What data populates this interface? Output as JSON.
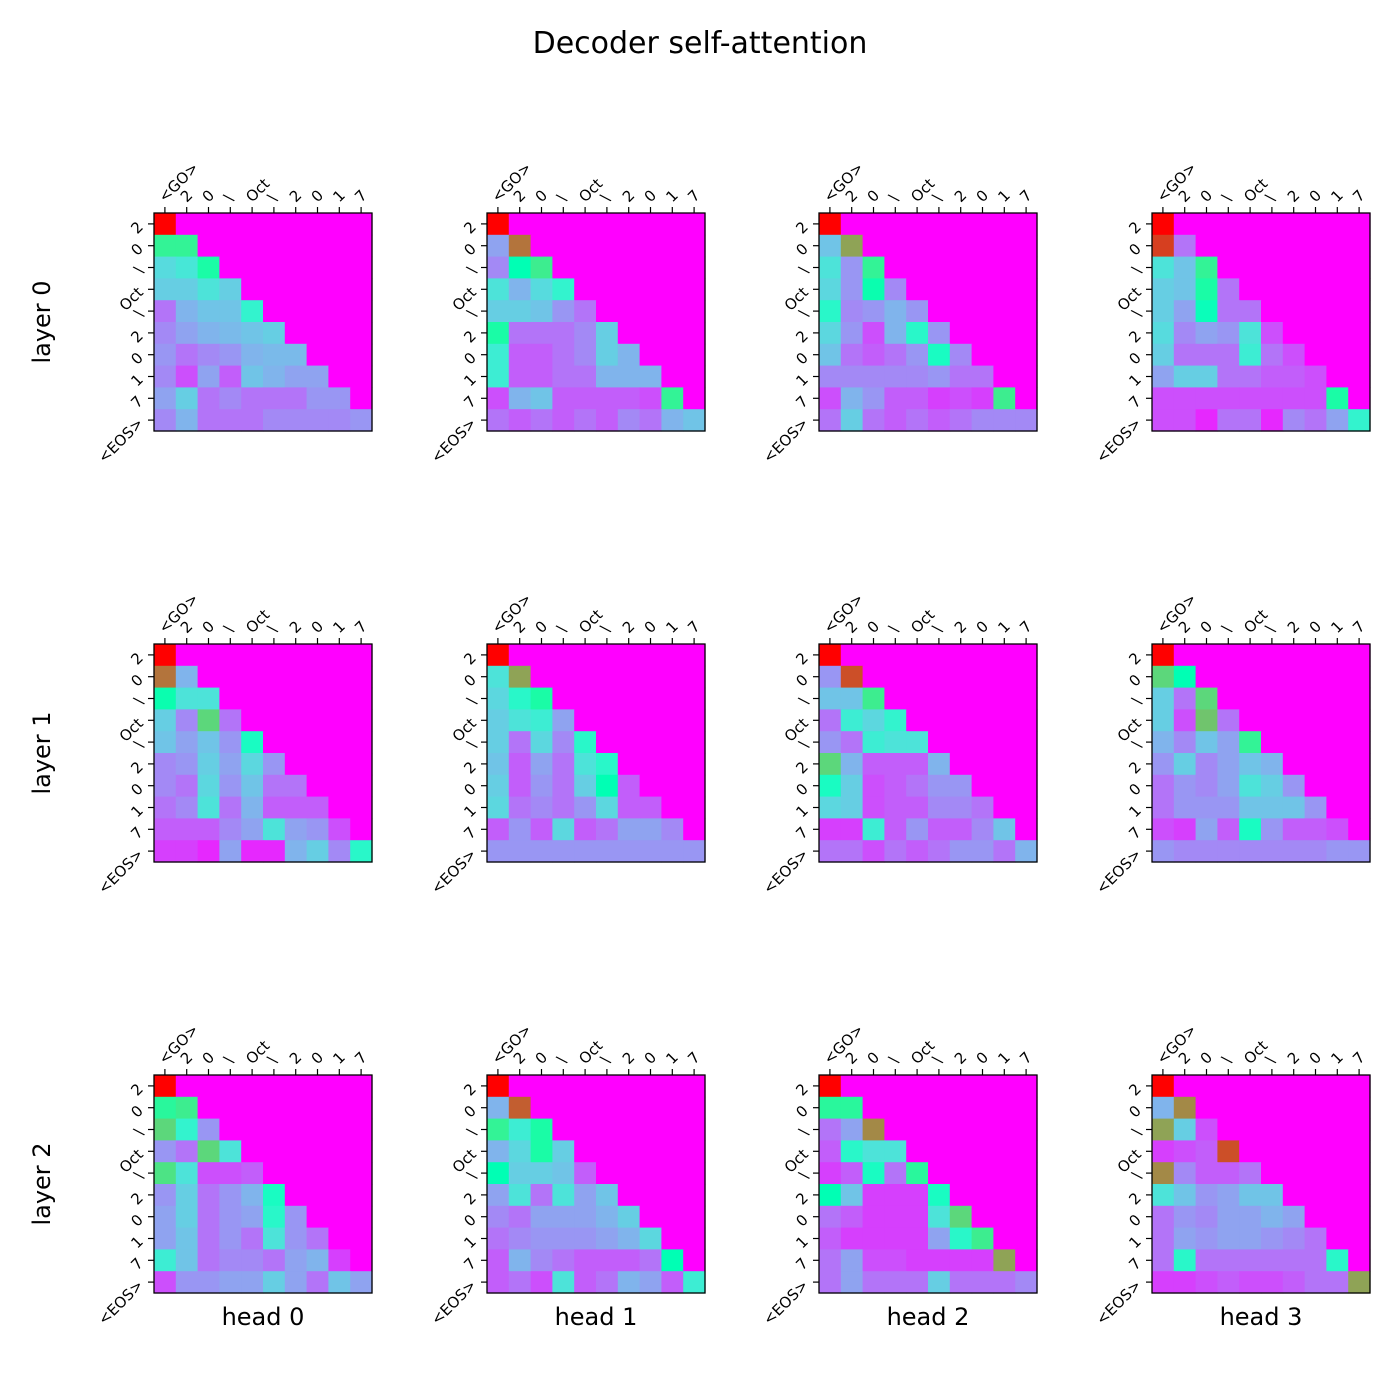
{
  "figure": {
    "title": "Decoder self-attention",
    "row_labels": [
      "layer 0",
      "layer 1",
      "layer 2"
    ],
    "col_labels": [
      "head 0",
      "head 1",
      "head 2",
      "head 3"
    ]
  },
  "chart_data": {
    "type": "heatmap",
    "title": "Decoder self-attention",
    "colormap": "rainbow",
    "value_range": [
      0,
      1
    ],
    "x_tick_labels": [
      "<GO>",
      "2",
      "0",
      "\\",
      "Oct",
      "\\",
      "2",
      "0",
      "1",
      "7"
    ],
    "y_tick_labels": [
      "2",
      "0",
      "\\",
      "Oct",
      "\\",
      "2",
      "0",
      "1",
      "7",
      "<EOS>"
    ],
    "grid": false,
    "panels": [
      {
        "layer": "layer 0",
        "head": "",
        "values": [
          [
            1.0
          ],
          [
            0.6,
            0.6
          ],
          [
            0.33,
            0.36,
            0.55
          ],
          [
            0.3,
            0.3,
            0.35,
            0.3
          ],
          [
            0.15,
            0.25,
            0.28,
            0.28,
            0.4
          ],
          [
            0.18,
            0.22,
            0.25,
            0.26,
            0.28,
            0.3
          ],
          [
            0.2,
            0.15,
            0.18,
            0.2,
            0.25,
            0.26,
            0.26
          ],
          [
            0.18,
            0.1,
            0.22,
            0.12,
            0.28,
            0.25,
            0.22,
            0.22
          ],
          [
            0.22,
            0.3,
            0.15,
            0.18,
            0.15,
            0.15,
            0.15,
            0.2,
            0.2
          ],
          [
            0.18,
            0.25,
            0.15,
            0.15,
            0.15,
            0.18,
            0.18,
            0.18,
            0.18,
            0.2
          ]
        ]
      },
      {
        "layer": "layer 0",
        "head": "",
        "values": [
          [
            1.0
          ],
          [
            0.22,
            0.85
          ],
          [
            0.18,
            0.5,
            0.62
          ],
          [
            0.35,
            0.25,
            0.33,
            0.4
          ],
          [
            0.3,
            0.3,
            0.28,
            0.2,
            0.15
          ],
          [
            0.55,
            0.15,
            0.15,
            0.15,
            0.18,
            0.3
          ],
          [
            0.38,
            0.12,
            0.12,
            0.15,
            0.18,
            0.3,
            0.25
          ],
          [
            0.38,
            0.12,
            0.12,
            0.15,
            0.15,
            0.25,
            0.25,
            0.25
          ],
          [
            0.1,
            0.25,
            0.28,
            0.12,
            0.12,
            0.12,
            0.12,
            0.1,
            0.6
          ],
          [
            0.15,
            0.12,
            0.15,
            0.12,
            0.15,
            0.12,
            0.18,
            0.15,
            0.25,
            0.28
          ]
        ]
      },
      {
        "layer": "layer 0",
        "head": "",
        "values": [
          [
            1.0
          ],
          [
            0.28,
            0.78
          ],
          [
            0.35,
            0.2,
            0.6
          ],
          [
            0.32,
            0.2,
            0.52,
            0.18
          ],
          [
            0.42,
            0.18,
            0.2,
            0.25,
            0.2
          ],
          [
            0.32,
            0.2,
            0.1,
            0.25,
            0.42,
            0.2
          ],
          [
            0.28,
            0.15,
            0.12,
            0.15,
            0.2,
            0.45,
            0.18
          ],
          [
            0.18,
            0.18,
            0.18,
            0.18,
            0.18,
            0.2,
            0.15,
            0.15
          ],
          [
            0.1,
            0.25,
            0.2,
            0.12,
            0.12,
            0.08,
            0.1,
            0.08,
            0.62
          ],
          [
            0.15,
            0.3,
            0.15,
            0.12,
            0.15,
            0.12,
            0.15,
            0.18,
            0.18,
            0.18
          ]
        ]
      },
      {
        "layer": "layer 0",
        "head": "",
        "values": [
          [
            1.0
          ],
          [
            0.92,
            0.15
          ],
          [
            0.35,
            0.28,
            0.6
          ],
          [
            0.3,
            0.28,
            0.55,
            0.15
          ],
          [
            0.3,
            0.22,
            0.48,
            0.15,
            0.15
          ],
          [
            0.33,
            0.18,
            0.22,
            0.2,
            0.35,
            0.1
          ],
          [
            0.3,
            0.15,
            0.15,
            0.15,
            0.38,
            0.15,
            0.1
          ],
          [
            0.22,
            0.3,
            0.3,
            0.15,
            0.15,
            0.12,
            0.12,
            0.1
          ],
          [
            0.1,
            0.1,
            0.1,
            0.1,
            0.1,
            0.1,
            0.1,
            0.1,
            0.55
          ],
          [
            0.1,
            0.1,
            0.05,
            0.15,
            0.15,
            0.05,
            0.18,
            0.15,
            0.22,
            0.4
          ]
        ]
      },
      {
        "layer": "layer 1",
        "head": "",
        "values": [
          [
            1.0
          ],
          [
            0.85,
            0.25
          ],
          [
            0.52,
            0.35,
            0.35
          ],
          [
            0.3,
            0.18,
            0.68,
            0.15
          ],
          [
            0.28,
            0.22,
            0.28,
            0.2,
            0.45
          ],
          [
            0.18,
            0.2,
            0.3,
            0.22,
            0.32,
            0.2
          ],
          [
            0.18,
            0.15,
            0.32,
            0.2,
            0.28,
            0.15,
            0.15
          ],
          [
            0.15,
            0.18,
            0.35,
            0.15,
            0.25,
            0.12,
            0.12,
            0.12
          ],
          [
            0.12,
            0.12,
            0.12,
            0.18,
            0.22,
            0.35,
            0.22,
            0.2,
            0.1
          ],
          [
            0.08,
            0.08,
            0.05,
            0.22,
            0.05,
            0.05,
            0.25,
            0.3,
            0.18,
            0.42
          ]
        ]
      },
      {
        "layer": "layer 1",
        "head": "",
        "values": [
          [
            1.0
          ],
          [
            0.35,
            0.78
          ],
          [
            0.32,
            0.42,
            0.55
          ],
          [
            0.3,
            0.35,
            0.38,
            0.22
          ],
          [
            0.3,
            0.15,
            0.32,
            0.18,
            0.42
          ],
          [
            0.28,
            0.12,
            0.22,
            0.15,
            0.35,
            0.42
          ],
          [
            0.3,
            0.12,
            0.2,
            0.15,
            0.3,
            0.5,
            0.12
          ],
          [
            0.32,
            0.15,
            0.18,
            0.15,
            0.2,
            0.32,
            0.12,
            0.12
          ],
          [
            0.12,
            0.2,
            0.12,
            0.32,
            0.12,
            0.15,
            0.22,
            0.22,
            0.18
          ],
          [
            0.2,
            0.2,
            0.2,
            0.2,
            0.2,
            0.2,
            0.2,
            0.2,
            0.2,
            0.2
          ]
        ]
      },
      {
        "layer": "layer 1",
        "head": "",
        "values": [
          [
            1.0
          ],
          [
            0.2,
            0.9
          ],
          [
            0.28,
            0.28,
            0.62
          ],
          [
            0.15,
            0.38,
            0.32,
            0.4
          ],
          [
            0.2,
            0.15,
            0.38,
            0.35,
            0.35
          ],
          [
            0.68,
            0.25,
            0.12,
            0.12,
            0.12,
            0.25
          ],
          [
            0.45,
            0.3,
            0.1,
            0.12,
            0.15,
            0.2,
            0.2
          ],
          [
            0.32,
            0.3,
            0.1,
            0.12,
            0.12,
            0.18,
            0.18,
            0.15
          ],
          [
            0.08,
            0.08,
            0.38,
            0.12,
            0.2,
            0.12,
            0.12,
            0.18,
            0.28
          ],
          [
            0.15,
            0.15,
            0.1,
            0.15,
            0.12,
            0.15,
            0.2,
            0.2,
            0.15,
            0.25
          ]
        ]
      },
      {
        "layer": "layer 1",
        "head": "",
        "values": [
          [
            1.0
          ],
          [
            0.68,
            0.5
          ],
          [
            0.3,
            0.15,
            0.68
          ],
          [
            0.3,
            0.1,
            0.72,
            0.15
          ],
          [
            0.25,
            0.18,
            0.28,
            0.22,
            0.6
          ],
          [
            0.2,
            0.3,
            0.18,
            0.22,
            0.28,
            0.25
          ],
          [
            0.15,
            0.2,
            0.18,
            0.22,
            0.35,
            0.3,
            0.2
          ],
          [
            0.15,
            0.2,
            0.2,
            0.2,
            0.28,
            0.28,
            0.28,
            0.2
          ],
          [
            0.1,
            0.08,
            0.22,
            0.12,
            0.45,
            0.2,
            0.12,
            0.12,
            0.1
          ],
          [
            0.2,
            0.18,
            0.18,
            0.18,
            0.18,
            0.18,
            0.18,
            0.18,
            0.2,
            0.2
          ]
        ]
      },
      {
        "layer": "layer 2",
        "head": "",
        "values": [
          [
            1.0
          ],
          [
            0.58,
            0.62
          ],
          [
            0.68,
            0.4,
            0.2
          ],
          [
            0.2,
            0.15,
            0.68,
            0.35
          ],
          [
            0.65,
            0.35,
            0.1,
            0.1,
            0.12
          ],
          [
            0.2,
            0.3,
            0.15,
            0.2,
            0.25,
            0.45
          ],
          [
            0.22,
            0.3,
            0.15,
            0.2,
            0.22,
            0.42,
            0.2
          ],
          [
            0.22,
            0.28,
            0.15,
            0.2,
            0.15,
            0.35,
            0.2,
            0.15
          ],
          [
            0.38,
            0.28,
            0.15,
            0.18,
            0.18,
            0.15,
            0.22,
            0.25,
            0.08
          ],
          [
            0.1,
            0.2,
            0.2,
            0.22,
            0.22,
            0.3,
            0.22,
            0.15,
            0.28,
            0.22
          ]
        ]
      },
      {
        "layer": "layer 2",
        "head": "",
        "values": [
          [
            1.0
          ],
          [
            0.25,
            0.88
          ],
          [
            0.6,
            0.38,
            0.55
          ],
          [
            0.25,
            0.32,
            0.55,
            0.3
          ],
          [
            0.5,
            0.3,
            0.3,
            0.28,
            0.12
          ],
          [
            0.22,
            0.35,
            0.15,
            0.35,
            0.22,
            0.28
          ],
          [
            0.18,
            0.15,
            0.22,
            0.22,
            0.22,
            0.25,
            0.3
          ],
          [
            0.15,
            0.18,
            0.2,
            0.2,
            0.2,
            0.22,
            0.25,
            0.32
          ],
          [
            0.12,
            0.25,
            0.18,
            0.15,
            0.12,
            0.12,
            0.12,
            0.15,
            0.5
          ],
          [
            0.12,
            0.15,
            0.1,
            0.35,
            0.12,
            0.15,
            0.25,
            0.22,
            0.12,
            0.38
          ]
        ]
      },
      {
        "layer": "layer 2",
        "head": "",
        "values": [
          [
            1.0
          ],
          [
            0.58,
            0.58
          ],
          [
            0.15,
            0.22,
            0.82
          ],
          [
            0.12,
            0.42,
            0.35,
            0.35
          ],
          [
            0.08,
            0.12,
            0.45,
            0.15,
            0.58
          ],
          [
            0.5,
            0.28,
            0.08,
            0.08,
            0.08,
            0.45
          ],
          [
            0.15,
            0.12,
            0.08,
            0.08,
            0.08,
            0.35,
            0.68
          ],
          [
            0.12,
            0.08,
            0.08,
            0.08,
            0.08,
            0.22,
            0.42,
            0.62
          ],
          [
            0.15,
            0.22,
            0.1,
            0.1,
            0.08,
            0.08,
            0.08,
            0.08,
            0.78
          ],
          [
            0.15,
            0.22,
            0.15,
            0.15,
            0.15,
            0.3,
            0.15,
            0.15,
            0.15,
            0.18
          ]
        ]
      },
      {
        "layer": "layer 2",
        "head": "",
        "values": [
          [
            1.0
          ],
          [
            0.25,
            0.82
          ],
          [
            0.78,
            0.3,
            0.1
          ],
          [
            0.08,
            0.1,
            0.12,
            0.9
          ],
          [
            0.82,
            0.18,
            0.12,
            0.12,
            0.15
          ],
          [
            0.35,
            0.28,
            0.2,
            0.22,
            0.28,
            0.28
          ],
          [
            0.15,
            0.2,
            0.18,
            0.22,
            0.22,
            0.25,
            0.22
          ],
          [
            0.15,
            0.22,
            0.2,
            0.22,
            0.22,
            0.2,
            0.18,
            0.15
          ],
          [
            0.15,
            0.42,
            0.15,
            0.15,
            0.15,
            0.15,
            0.15,
            0.15,
            0.42
          ],
          [
            0.08,
            0.08,
            0.1,
            0.12,
            0.1,
            0.1,
            0.12,
            0.15,
            0.15,
            0.78
          ]
        ]
      }
    ]
  }
}
